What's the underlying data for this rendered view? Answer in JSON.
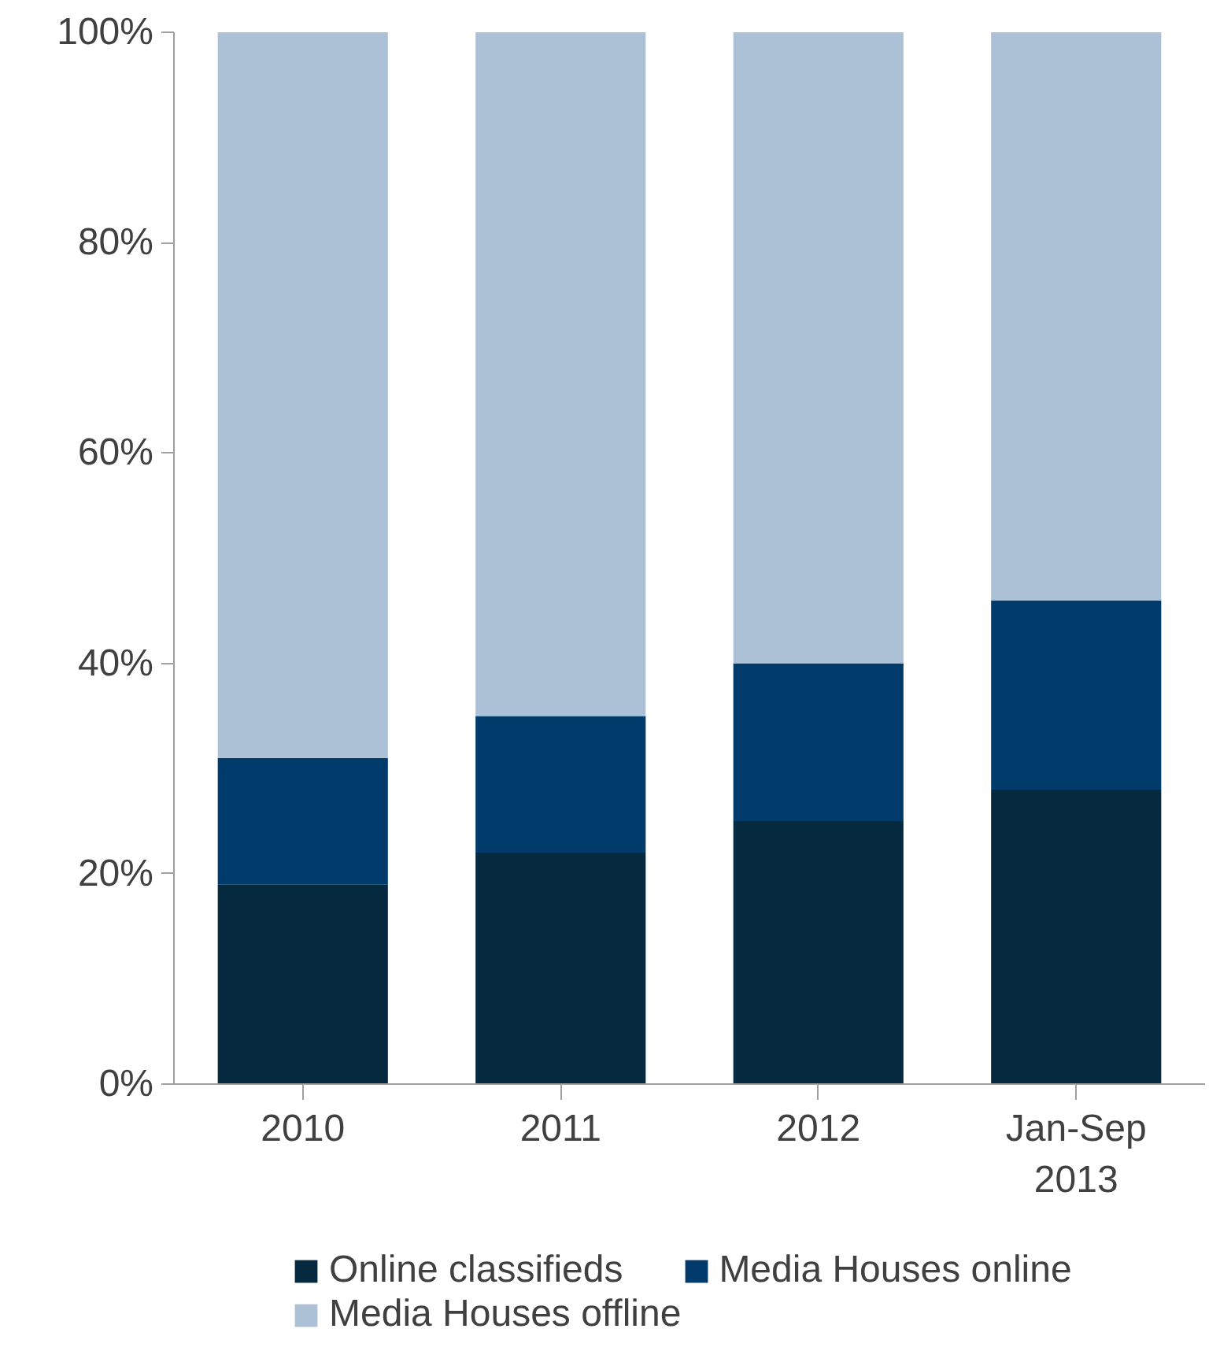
{
  "chart_data": {
    "type": "bar",
    "stacked": true,
    "categories": [
      "2010",
      "2011",
      "2012",
      "Jan-Sep\n2013"
    ],
    "series": [
      {
        "name": "Online classifieds",
        "color": "#052a40",
        "values": [
          19,
          22,
          25,
          28
        ]
      },
      {
        "name": "Media Houses online",
        "color": "#003b6c",
        "values": [
          12,
          13,
          15,
          18
        ]
      },
      {
        "name": "Media Houses offline",
        "color": "#adc1d6",
        "values": [
          69,
          65,
          60,
          54
        ]
      }
    ],
    "ylim": [
      0,
      100
    ],
    "yticks": [
      {
        "value": 0,
        "label": "0%"
      },
      {
        "value": 20,
        "label": "20%"
      },
      {
        "value": 40,
        "label": "40%"
      },
      {
        "value": 60,
        "label": "60%"
      },
      {
        "value": 80,
        "label": "80%"
      },
      {
        "value": 100,
        "label": "100%"
      }
    ],
    "grid": false,
    "legend": "bottom"
  }
}
